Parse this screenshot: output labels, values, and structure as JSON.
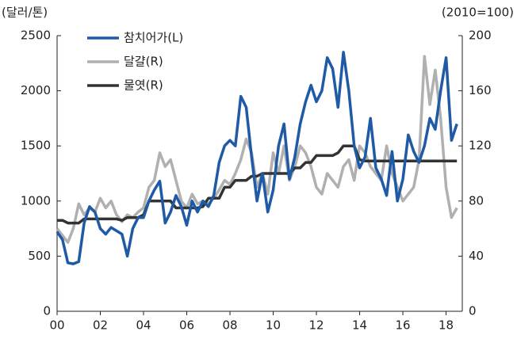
{
  "chart_data": {
    "type": "line",
    "y_label": "(달러/톤)",
    "y2_label": "(2010=100)",
    "x": [
      0,
      0.25,
      0.5,
      0.75,
      1,
      1.25,
      1.5,
      1.75,
      2,
      2.25,
      2.5,
      2.75,
      3,
      3.25,
      3.5,
      3.75,
      4,
      4.25,
      4.5,
      4.75,
      5,
      5.25,
      5.5,
      5.75,
      6,
      6.25,
      6.5,
      6.75,
      7,
      7.25,
      7.5,
      7.75,
      8,
      8.25,
      8.5,
      8.75,
      9,
      9.25,
      9.5,
      9.75,
      10,
      10.25,
      10.5,
      10.75,
      11,
      11.25,
      11.5,
      11.75,
      12,
      12.25,
      12.5,
      12.75,
      13,
      13.25,
      13.5,
      13.75,
      14,
      14.25,
      14.5,
      14.75,
      15,
      15.25,
      15.5,
      15.75,
      16,
      16.25,
      16.5,
      16.75,
      17,
      17.25,
      17.5,
      17.75,
      18,
      18.25,
      18.5
    ],
    "series": [
      {
        "name": "참치어가(L)",
        "color": "#1f5aa6",
        "axis": "y",
        "values": [
          720,
          650,
          440,
          430,
          450,
          800,
          950,
          900,
          750,
          700,
          760,
          730,
          700,
          500,
          750,
          850,
          850,
          1000,
          1100,
          1180,
          800,
          900,
          1050,
          950,
          780,
          1000,
          900,
          1000,
          950,
          1050,
          1350,
          1500,
          1550,
          1500,
          1950,
          1850,
          1400,
          1000,
          1250,
          900,
          1100,
          1500,
          1700,
          1200,
          1400,
          1700,
          1900,
          2050,
          1900,
          2000,
          2300,
          2200,
          1850,
          2350,
          2000,
          1500,
          1300,
          1400,
          1750,
          1300,
          1200,
          1050,
          1450,
          1000,
          1200,
          1600,
          1450,
          1350,
          1500,
          1750,
          1650,
          2000,
          2300,
          1550,
          1700
        ]
      },
      {
        "name": "달걀(R)",
        "color": "#b0b0b0",
        "axis": "y2",
        "values": [
          60,
          55,
          50,
          60,
          78,
          70,
          75,
          72,
          82,
          75,
          80,
          70,
          65,
          70,
          68,
          72,
          75,
          90,
          95,
          115,
          105,
          110,
          95,
          80,
          75,
          85,
          78,
          80,
          78,
          82,
          88,
          95,
          92,
          100,
          110,
          125,
          115,
          90,
          100,
          85,
          115,
          100,
          120,
          95,
          105,
          120,
          115,
          105,
          90,
          85,
          100,
          95,
          90,
          105,
          110,
          95,
          120,
          115,
          105,
          100,
          95,
          120,
          100,
          90,
          80,
          85,
          90,
          110,
          185,
          150,
          175,
          140,
          90,
          68,
          75
        ]
      },
      {
        "name": "물엿(R)",
        "color": "#333333",
        "axis": "y2",
        "values": [
          66,
          66,
          64,
          64,
          64,
          67,
          67,
          67,
          67,
          67,
          67,
          67,
          66,
          68,
          68,
          68,
          70,
          80,
          80,
          80,
          80,
          80,
          75,
          75,
          75,
          75,
          75,
          76,
          82,
          82,
          82,
          90,
          90,
          95,
          95,
          95,
          98,
          98,
          100,
          100,
          100,
          100,
          100,
          100,
          104,
          104,
          108,
          108,
          113,
          113,
          113,
          113,
          115,
          120,
          120,
          120,
          110,
          109,
          109,
          109,
          109,
          109,
          109,
          109,
          109,
          109,
          109,
          109,
          109,
          109,
          109,
          109,
          109,
          109,
          109
        ]
      }
    ],
    "xlim": [
      0,
      18.75
    ],
    "xticks": [
      {
        "value": 0,
        "label": "00"
      },
      {
        "value": 2,
        "label": "02"
      },
      {
        "value": 4,
        "label": "04"
      },
      {
        "value": 6,
        "label": "06"
      },
      {
        "value": 8,
        "label": "08"
      },
      10,
      12,
      14,
      16,
      18
    ],
    "ylim": [
      0,
      2500
    ],
    "yticks": [
      0,
      500,
      1000,
      1500,
      2000,
      2500
    ],
    "y2lim": [
      0,
      200
    ],
    "y2ticks": [
      0,
      40,
      80,
      120,
      160,
      200
    ],
    "legend": "upper left",
    "grid": false
  }
}
